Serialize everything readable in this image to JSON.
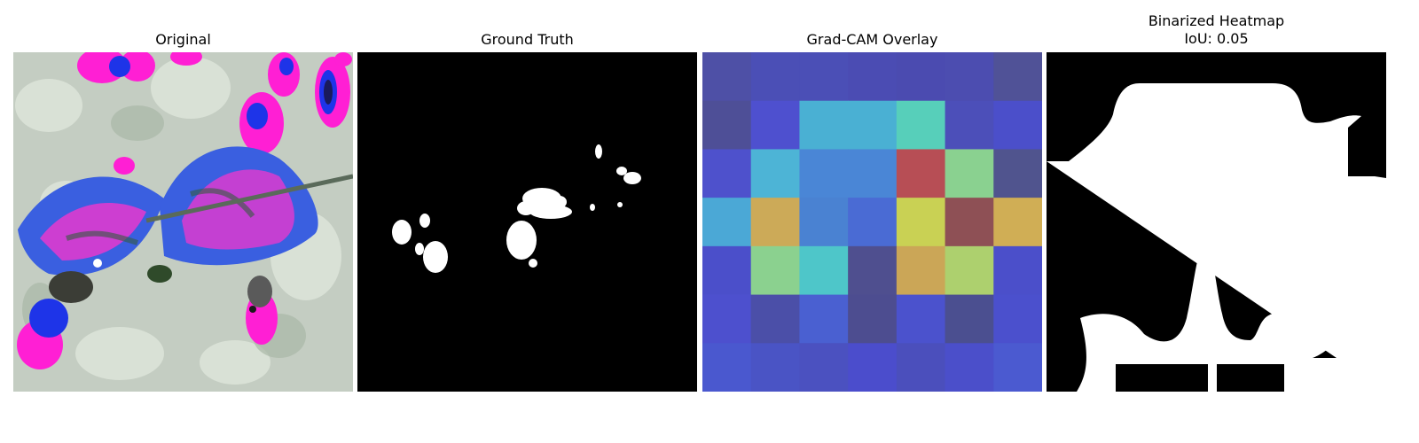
{
  "panels": {
    "original": {
      "title": "Original"
    },
    "ground_truth": {
      "title": "Ground Truth"
    },
    "gradcam": {
      "title": "Grad-CAM Overlay",
      "colors": [
        [
          "#4e50a6",
          "#4b4fb6",
          "#4b4fb6",
          "#4b4cb3",
          "#4b4bb0",
          "#4c4db0",
          "#505297"
        ],
        [
          "#4e4f97",
          "#4e50cf",
          "#4ab0d3",
          "#4ab0d3",
          "#57cfba",
          "#4c4fb9",
          "#4b4fca"
        ],
        [
          "#4e51cc",
          "#4db4d6",
          "#4a86d6",
          "#4a86d6",
          "#b74e55",
          "#8ad190",
          "#50548e"
        ],
        [
          "#4ba8d6",
          "#ccaa58",
          "#4a82d2",
          "#4a6bd4",
          "#c9d154",
          "#8e5055",
          "#d0ae55"
        ],
        [
          "#4b4fca",
          "#8bd18f",
          "#4ec6c9",
          "#4f4f8f",
          "#cba657",
          "#add06e",
          "#4b4fca"
        ],
        [
          "#4d50ce",
          "#4b4fa8",
          "#4a60d1",
          "#4d4d90",
          "#4b52cd",
          "#4b4f90",
          "#4b50cd"
        ],
        [
          "#4a58cf",
          "#4a54c5",
          "#4b51c0",
          "#4b4dcc",
          "#4b4fbc",
          "#4b4fca",
          "#4b5ad0"
        ]
      ]
    },
    "binarized": {
      "title": "Binarized Heatmap",
      "iou_label": "IoU: 0.05"
    }
  }
}
